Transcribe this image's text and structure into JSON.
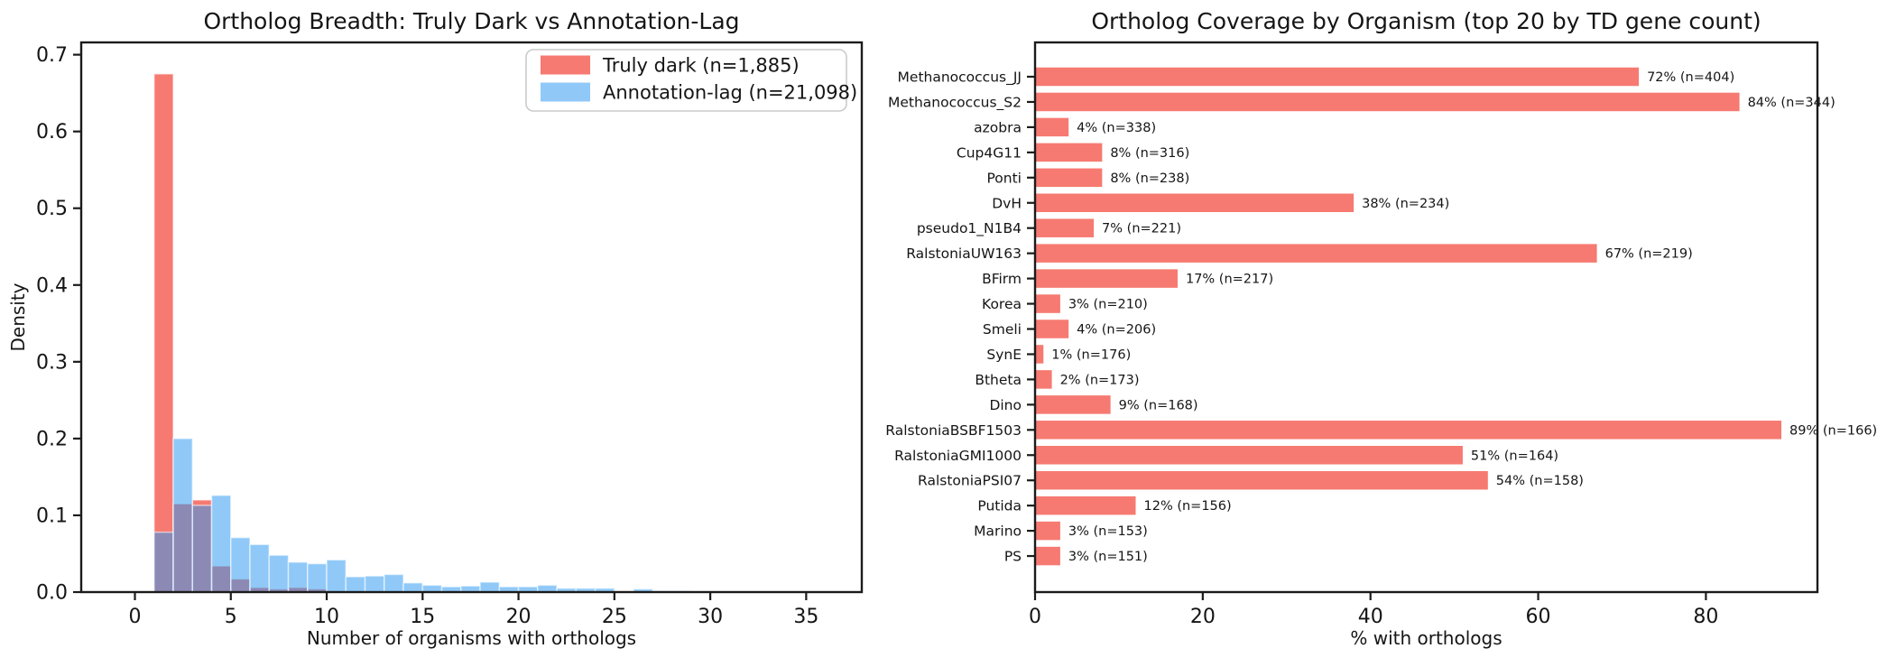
{
  "figure": {
    "background": "#ffffff",
    "text_color": "#151515",
    "spine_color": "#1b1b1b"
  },
  "chart_data": [
    {
      "type": "histogram",
      "title": "Ortholog Breadth: Truly Dark vs Annotation-Lag",
      "xlabel": "Number of organisms with orthologs",
      "ylabel": "Density",
      "xlim": [
        -2.8,
        37.9
      ],
      "ylim": [
        0,
        0.716
      ],
      "xticks": [
        0,
        5,
        10,
        15,
        20,
        25,
        30,
        35
      ],
      "xtick_labels": [
        "0",
        "5",
        "10",
        "15",
        "20",
        "25",
        "30",
        "35"
      ],
      "yticks": [
        0.0,
        0.1,
        0.2,
        0.3,
        0.4,
        0.5,
        0.6,
        0.7
      ],
      "ytick_labels": [
        "0.0",
        "0.1",
        "0.2",
        "0.3",
        "0.4",
        "0.5",
        "0.6",
        "0.7"
      ],
      "bin_start": 1,
      "bin_width": 1,
      "grid": false,
      "legend_position": "upper-right",
      "legend": [
        {
          "label": "Truly dark (n=1,885)",
          "swatch_color": "#f67a71",
          "swatch_opacity": 1
        },
        {
          "label": "Annotation-lag (n=21,098)",
          "swatch_color": "#2a97f2",
          "swatch_opacity": 0.52
        }
      ],
      "series": [
        {
          "name": "Truly dark (n=1,885)",
          "color": "#f67a71",
          "fill_opacity": 1,
          "densities": [
            0.675,
            0.115,
            0.12,
            0.034,
            0.017,
            0.006,
            0.004,
            0.006,
            0.004,
            0,
            0,
            0,
            0,
            0,
            0,
            0,
            0,
            0,
            0,
            0,
            0,
            0,
            0,
            0,
            0,
            0,
            0,
            0
          ]
        },
        {
          "name": "Annotation-lag (n=21,098)",
          "color": "#2a97f2",
          "fill_opacity": 0.52,
          "densities": [
            0.078,
            0.2,
            0.113,
            0.126,
            0.071,
            0.062,
            0.048,
            0.039,
            0.037,
            0.042,
            0.02,
            0.021,
            0.023,
            0.012,
            0.009,
            0.007,
            0.008,
            0.013,
            0.007,
            0.007,
            0.009,
            0.005,
            0.005,
            0.005,
            0,
            0.004,
            0.0015,
            0.0015
          ]
        }
      ]
    },
    {
      "type": "bar",
      "orientation": "horizontal",
      "title": "Ortholog Coverage by Organism (top 20 by TD gene count)",
      "xlabel": "% with orthologs",
      "ylabel": "",
      "xlim": [
        0,
        93.3
      ],
      "xticks": [
        0,
        20,
        40,
        60,
        80
      ],
      "xtick_labels": [
        "0",
        "20",
        "40",
        "60",
        "80"
      ],
      "bar_color": "#f67a71",
      "grid": false,
      "categories": [
        "Methanococcus_JJ",
        "Methanococcus_S2",
        "azobra",
        "Cup4G11",
        "Ponti",
        "DvH",
        "pseudo1_N1B4",
        "RalstoniaUW163",
        "BFirm",
        "Korea",
        "Smeli",
        "SynE",
        "Btheta",
        "Dino",
        "RalstoniaBSBF1503",
        "RalstoniaGMI1000",
        "RalstoniaPSI07",
        "Putida",
        "Marino",
        "PS"
      ],
      "values": [
        72,
        84,
        4,
        8,
        8,
        38,
        7,
        67,
        17,
        3,
        4,
        1,
        2,
        9,
        89,
        51,
        54,
        12,
        3,
        3
      ],
      "annotations": [
        "72% (n=404)",
        "84% (n=344)",
        "4% (n=338)",
        "8% (n=316)",
        "8% (n=238)",
        "38% (n=234)",
        "7% (n=221)",
        "67% (n=219)",
        "17% (n=217)",
        "3% (n=210)",
        "4% (n=206)",
        "1% (n=176)",
        "2% (n=173)",
        "9% (n=168)",
        "89% (n=166)",
        "51% (n=164)",
        "54% (n=158)",
        "12% (n=156)",
        "3% (n=153)",
        "3% (n=151)"
      ]
    }
  ]
}
